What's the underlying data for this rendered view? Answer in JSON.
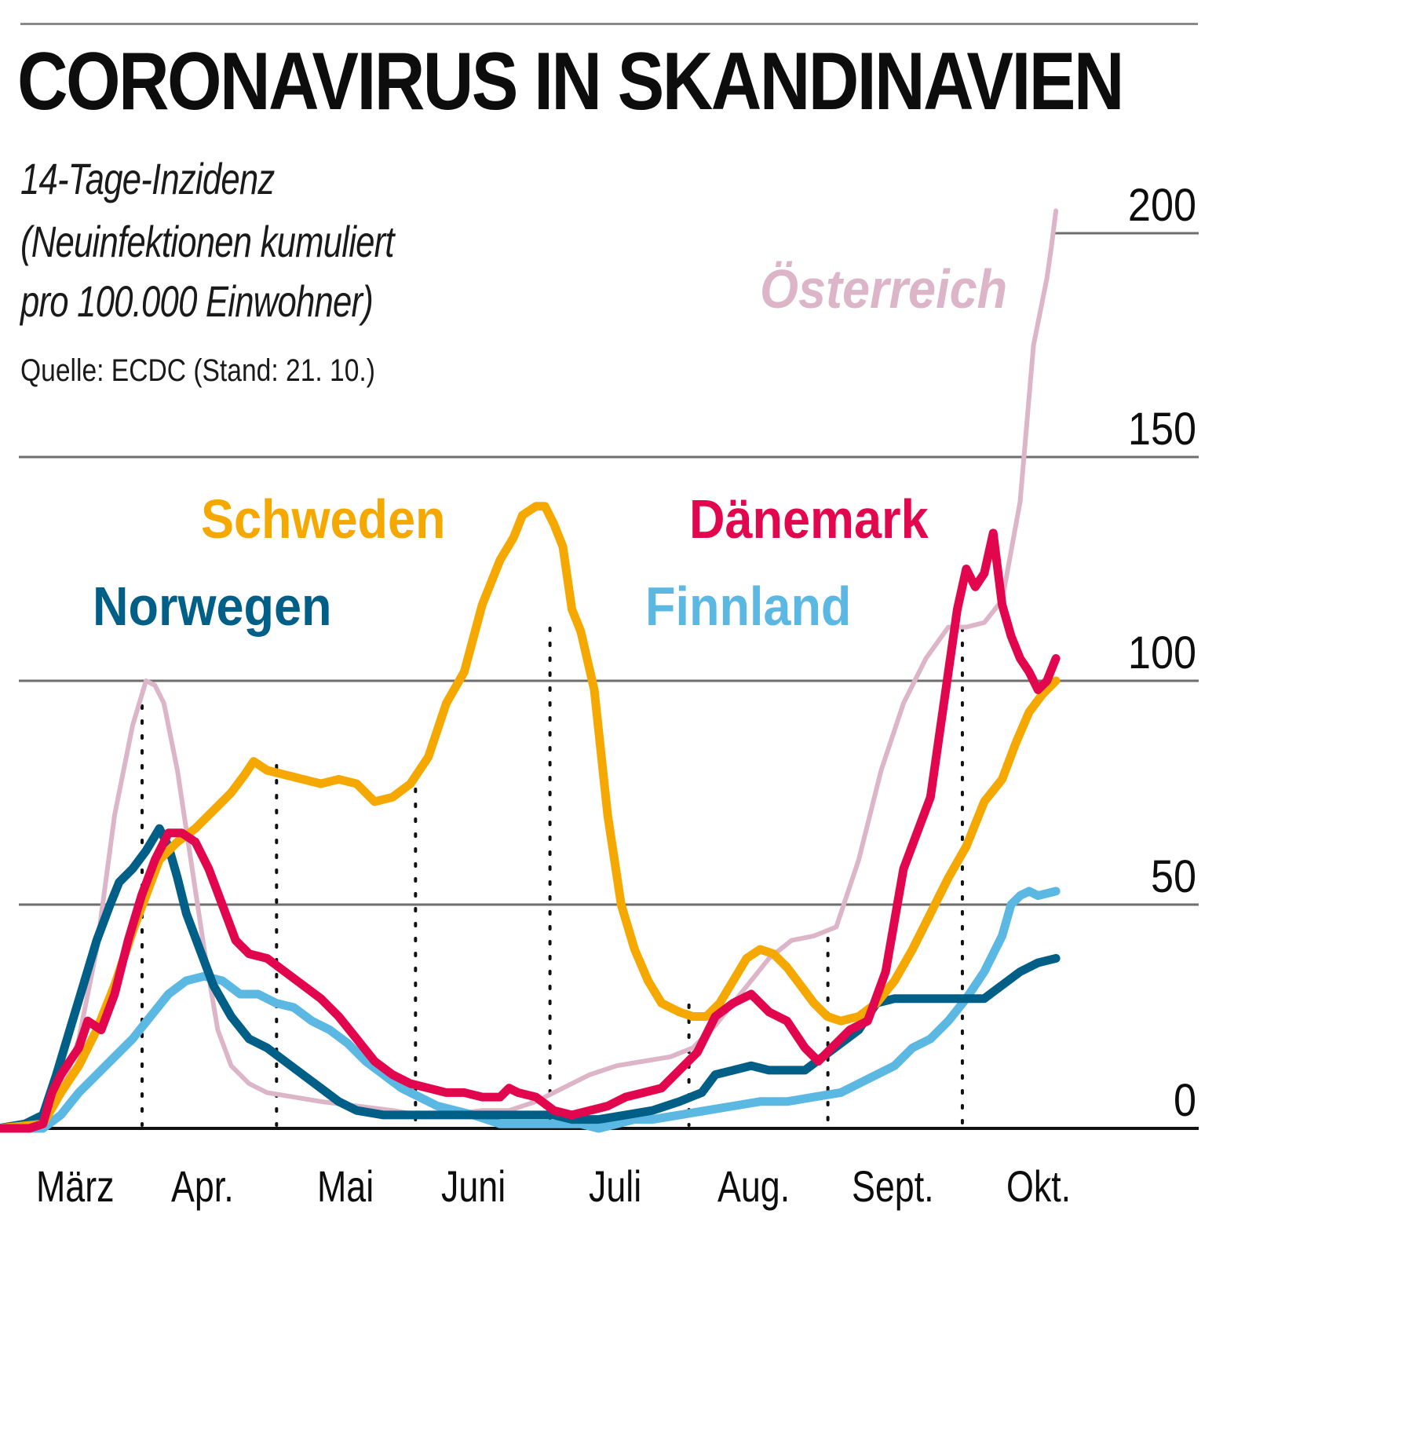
{
  "header": {
    "title": "CORONAVIRUS IN SKANDINAVIEN",
    "subtitle_lines": [
      "14-Tage-Inzidenz",
      "(Neuinfektionen kumuliert",
      "pro 100.000 Einwohner)"
    ],
    "source": "Quelle: ECDC (Stand: 21. 10.)"
  },
  "chart_data": {
    "type": "line",
    "title": "CORONAVIRUS IN SKANDINAVIEN",
    "subtitle": "14-Tage-Inzidenz (Neuinfektionen kumuliert pro 100.000 Einwohner)",
    "source": "Quelle: ECDC (Stand: 21. 10.)",
    "xlabel": "",
    "ylabel": "14-Tage-Inzidenz",
    "x_unit": "days since 1 March 2020",
    "xlim": [
      -2,
      234
    ],
    "ylim": [
      0,
      200
    ],
    "yticks": [
      0,
      50,
      100,
      150,
      200
    ],
    "ytick_labels": [
      "0",
      "50",
      "100",
      "150",
      "200"
    ],
    "grid": "horizontal",
    "y_axis_side": "right",
    "month_ticks": [
      {
        "label": "März",
        "day": 0
      },
      {
        "label": "Apr.",
        "day": 31
      },
      {
        "label": "Mai",
        "day": 61
      },
      {
        "label": "Juni",
        "day": 92
      },
      {
        "label": "Juli",
        "day": 122
      },
      {
        "label": "Aug.",
        "day": 153
      },
      {
        "label": "Sept.",
        "day": 184
      },
      {
        "label": "Okt.",
        "day": 214
      }
    ],
    "month_dividers_days": [
      31,
      61,
      92,
      122,
      153,
      184,
      214
    ],
    "series": [
      {
        "name": "Österreich",
        "color": "#dcb6c8",
        "label_italic": true,
        "points": [
          [
            -2,
            0
          ],
          [
            8,
            1
          ],
          [
            12,
            8
          ],
          [
            16,
            20
          ],
          [
            20,
            40
          ],
          [
            24,
            70
          ],
          [
            28,
            90
          ],
          [
            31,
            100
          ],
          [
            33,
            99
          ],
          [
            35,
            95
          ],
          [
            38,
            80
          ],
          [
            41,
            60
          ],
          [
            44,
            40
          ],
          [
            47,
            22
          ],
          [
            50,
            14
          ],
          [
            54,
            10
          ],
          [
            58,
            8
          ],
          [
            64,
            7
          ],
          [
            70,
            6
          ],
          [
            78,
            5
          ],
          [
            86,
            4
          ],
          [
            92,
            3
          ],
          [
            98,
            3
          ],
          [
            106,
            4
          ],
          [
            112,
            4
          ],
          [
            118,
            6
          ],
          [
            124,
            9
          ],
          [
            130,
            12
          ],
          [
            136,
            14
          ],
          [
            142,
            15
          ],
          [
            148,
            16
          ],
          [
            153,
            18
          ],
          [
            158,
            23
          ],
          [
            162,
            28
          ],
          [
            166,
            33
          ],
          [
            170,
            38
          ],
          [
            175,
            42
          ],
          [
            180,
            43
          ],
          [
            185,
            45
          ],
          [
            190,
            60
          ],
          [
            195,
            80
          ],
          [
            200,
            95
          ],
          [
            205,
            105
          ],
          [
            210,
            112
          ],
          [
            214,
            112
          ],
          [
            218,
            113
          ],
          [
            222,
            118
          ],
          [
            226,
            140
          ],
          [
            229,
            175
          ],
          [
            232,
            190
          ],
          [
            233,
            197
          ],
          [
            234,
            205
          ]
        ]
      },
      {
        "name": "Schweden",
        "color": "#f5a800",
        "label_italic": false,
        "points": [
          [
            -2,
            0
          ],
          [
            8,
            1
          ],
          [
            12,
            8
          ],
          [
            16,
            14
          ],
          [
            20,
            22
          ],
          [
            24,
            32
          ],
          [
            28,
            44
          ],
          [
            31,
            52
          ],
          [
            34,
            60
          ],
          [
            38,
            64
          ],
          [
            42,
            67
          ],
          [
            46,
            71
          ],
          [
            50,
            75
          ],
          [
            53,
            79
          ],
          [
            55,
            82
          ],
          [
            58,
            80
          ],
          [
            62,
            79
          ],
          [
            66,
            78
          ],
          [
            70,
            77
          ],
          [
            74,
            78
          ],
          [
            78,
            77
          ],
          [
            82,
            73
          ],
          [
            86,
            74
          ],
          [
            90,
            77
          ],
          [
            94,
            83
          ],
          [
            98,
            95
          ],
          [
            102,
            102
          ],
          [
            106,
            117
          ],
          [
            110,
            127
          ],
          [
            113,
            132
          ],
          [
            115,
            137
          ],
          [
            118,
            139
          ],
          [
            120,
            139
          ],
          [
            122,
            135
          ],
          [
            124,
            130
          ],
          [
            126,
            116
          ],
          [
            128,
            111
          ],
          [
            131,
            98
          ],
          [
            134,
            70
          ],
          [
            137,
            50
          ],
          [
            140,
            40
          ],
          [
            143,
            33
          ],
          [
            146,
            28
          ],
          [
            150,
            26
          ],
          [
            153,
            25
          ],
          [
            156,
            25
          ],
          [
            159,
            28
          ],
          [
            162,
            33
          ],
          [
            165,
            38
          ],
          [
            168,
            40
          ],
          [
            171,
            39
          ],
          [
            174,
            36
          ],
          [
            177,
            32
          ],
          [
            180,
            28
          ],
          [
            183,
            25
          ],
          [
            186,
            24
          ],
          [
            190,
            25
          ],
          [
            194,
            28
          ],
          [
            198,
            33
          ],
          [
            202,
            40
          ],
          [
            206,
            48
          ],
          [
            210,
            56
          ],
          [
            214,
            63
          ],
          [
            218,
            73
          ],
          [
            222,
            78
          ],
          [
            225,
            86
          ],
          [
            228,
            93
          ],
          [
            231,
            97
          ],
          [
            234,
            100
          ]
        ]
      },
      {
        "name": "Norwegen",
        "color": "#005f86",
        "label_italic": false,
        "points": [
          [
            -2,
            0
          ],
          [
            4,
            1
          ],
          [
            8,
            3
          ],
          [
            11,
            12
          ],
          [
            14,
            22
          ],
          [
            17,
            32
          ],
          [
            20,
            42
          ],
          [
            23,
            50
          ],
          [
            25,
            55
          ],
          [
            28,
            58
          ],
          [
            31,
            62
          ],
          [
            34,
            67
          ],
          [
            36,
            63
          ],
          [
            38,
            56
          ],
          [
            40,
            48
          ],
          [
            43,
            40
          ],
          [
            46,
            32
          ],
          [
            50,
            25
          ],
          [
            54,
            20
          ],
          [
            58,
            18
          ],
          [
            62,
            15
          ],
          [
            66,
            12
          ],
          [
            70,
            9
          ],
          [
            74,
            6
          ],
          [
            78,
            4
          ],
          [
            84,
            3
          ],
          [
            92,
            3
          ],
          [
            100,
            3
          ],
          [
            108,
            3
          ],
          [
            116,
            3
          ],
          [
            122,
            3
          ],
          [
            126,
            2
          ],
          [
            132,
            2
          ],
          [
            138,
            3
          ],
          [
            144,
            4
          ],
          [
            150,
            6
          ],
          [
            155,
            8
          ],
          [
            158,
            12
          ],
          [
            162,
            13
          ],
          [
            166,
            14
          ],
          [
            170,
            13
          ],
          [
            174,
            13
          ],
          [
            178,
            13
          ],
          [
            182,
            16
          ],
          [
            186,
            19
          ],
          [
            190,
            22
          ],
          [
            194,
            28
          ],
          [
            198,
            29
          ],
          [
            202,
            29
          ],
          [
            206,
            29
          ],
          [
            210,
            29
          ],
          [
            214,
            29
          ],
          [
            218,
            29
          ],
          [
            222,
            32
          ],
          [
            226,
            35
          ],
          [
            230,
            37
          ],
          [
            234,
            38
          ]
        ]
      },
      {
        "name": "Dänemark",
        "color": "#e2064f",
        "label_italic": false,
        "points": [
          [
            -2,
            0
          ],
          [
            5,
            0
          ],
          [
            8,
            1
          ],
          [
            10,
            8
          ],
          [
            12,
            12
          ],
          [
            14,
            15
          ],
          [
            16,
            18
          ],
          [
            18,
            24
          ],
          [
            21,
            22
          ],
          [
            24,
            30
          ],
          [
            27,
            42
          ],
          [
            30,
            52
          ],
          [
            33,
            60
          ],
          [
            36,
            66
          ],
          [
            39,
            66
          ],
          [
            42,
            64
          ],
          [
            45,
            58
          ],
          [
            48,
            50
          ],
          [
            51,
            42
          ],
          [
            54,
            39
          ],
          [
            58,
            38
          ],
          [
            62,
            35
          ],
          [
            66,
            32
          ],
          [
            70,
            29
          ],
          [
            74,
            25
          ],
          [
            78,
            20
          ],
          [
            82,
            15
          ],
          [
            86,
            12
          ],
          [
            90,
            10
          ],
          [
            94,
            9
          ],
          [
            98,
            8
          ],
          [
            102,
            8
          ],
          [
            106,
            7
          ],
          [
            110,
            7
          ],
          [
            112,
            9
          ],
          [
            114,
            8
          ],
          [
            118,
            7
          ],
          [
            122,
            4
          ],
          [
            126,
            3
          ],
          [
            130,
            4
          ],
          [
            134,
            5
          ],
          [
            138,
            7
          ],
          [
            142,
            8
          ],
          [
            146,
            9
          ],
          [
            150,
            13
          ],
          [
            154,
            17
          ],
          [
            158,
            25
          ],
          [
            162,
            28
          ],
          [
            166,
            30
          ],
          [
            170,
            26
          ],
          [
            174,
            24
          ],
          [
            178,
            18
          ],
          [
            181,
            15
          ],
          [
            184,
            18
          ],
          [
            188,
            22
          ],
          [
            192,
            24
          ],
          [
            196,
            35
          ],
          [
            200,
            58
          ],
          [
            203,
            66
          ],
          [
            206,
            74
          ],
          [
            209,
            95
          ],
          [
            212,
            116
          ],
          [
            214,
            125
          ],
          [
            216,
            121
          ],
          [
            218,
            124
          ],
          [
            220,
            133
          ],
          [
            222,
            117
          ],
          [
            224,
            110
          ],
          [
            226,
            105
          ],
          [
            228,
            102
          ],
          [
            230,
            98
          ],
          [
            232,
            100
          ],
          [
            234,
            105
          ]
        ]
      },
      {
        "name": "Finnland",
        "color": "#5bb8e3",
        "label_italic": false,
        "points": [
          [
            -2,
            0
          ],
          [
            8,
            0
          ],
          [
            12,
            3
          ],
          [
            16,
            8
          ],
          [
            20,
            12
          ],
          [
            24,
            16
          ],
          [
            28,
            20
          ],
          [
            32,
            25
          ],
          [
            36,
            30
          ],
          [
            40,
            33
          ],
          [
            44,
            34
          ],
          [
            48,
            33
          ],
          [
            52,
            30
          ],
          [
            56,
            30
          ],
          [
            60,
            28
          ],
          [
            64,
            27
          ],
          [
            68,
            24
          ],
          [
            72,
            22
          ],
          [
            76,
            19
          ],
          [
            80,
            15
          ],
          [
            84,
            12
          ],
          [
            88,
            9
          ],
          [
            92,
            7
          ],
          [
            96,
            5
          ],
          [
            100,
            4
          ],
          [
            104,
            3
          ],
          [
            110,
            1
          ],
          [
            116,
            1
          ],
          [
            122,
            1
          ],
          [
            128,
            1
          ],
          [
            132,
            0
          ],
          [
            136,
            1
          ],
          [
            140,
            2
          ],
          [
            144,
            2
          ],
          [
            150,
            3
          ],
          [
            156,
            4
          ],
          [
            162,
            5
          ],
          [
            168,
            6
          ],
          [
            174,
            6
          ],
          [
            180,
            7
          ],
          [
            186,
            8
          ],
          [
            190,
            10
          ],
          [
            194,
            12
          ],
          [
            198,
            14
          ],
          [
            202,
            18
          ],
          [
            206,
            20
          ],
          [
            210,
            24
          ],
          [
            214,
            29
          ],
          [
            218,
            35
          ],
          [
            222,
            43
          ],
          [
            224,
            50
          ],
          [
            226,
            52
          ],
          [
            228,
            53
          ],
          [
            230,
            52
          ],
          [
            234,
            53
          ]
        ]
      }
    ],
    "labels": [
      {
        "series": "Österreich",
        "text": "Österreich"
      },
      {
        "series": "Schweden",
        "text": "Schweden"
      },
      {
        "series": "Norwegen",
        "text": "Norwegen"
      },
      {
        "series": "Dänemark",
        "text": "Dänemark"
      },
      {
        "series": "Finnland",
        "text": "Finnland"
      }
    ]
  }
}
